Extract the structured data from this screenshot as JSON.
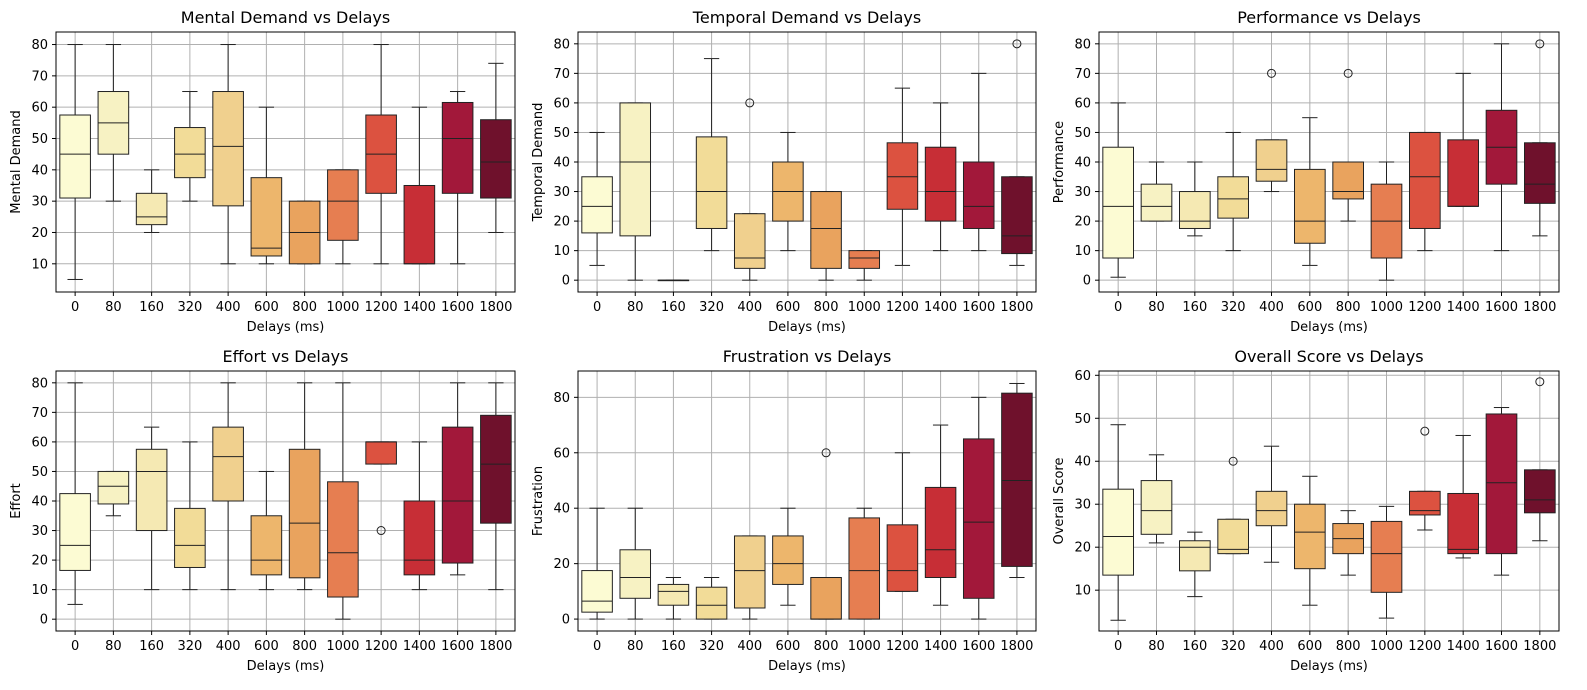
{
  "figure": {
    "colors": [
      "#fcfbd3",
      "#f7f2c3",
      "#f5e9b3",
      "#f2dc98",
      "#f0d08e",
      "#edb66c",
      "#e9a35e",
      "#e67e51",
      "#dc5240",
      "#c72e36",
      "#a2183a",
      "#6f112c"
    ],
    "xlabel": "Delays (ms)",
    "categories": [
      "0",
      "80",
      "160",
      "320",
      "400",
      "600",
      "800",
      "1000",
      "1200",
      "1400",
      "1600",
      "1800"
    ]
  },
  "chart_data": [
    {
      "type": "box",
      "title": "Mental Demand vs Delays",
      "xlabel": "Delays (ms)",
      "ylabel": "Mental Demand",
      "ylim": [
        1,
        84
      ],
      "yticks": [
        10,
        20,
        30,
        40,
        50,
        60,
        70,
        80
      ],
      "grid": true,
      "categories": [
        "0",
        "80",
        "160",
        "320",
        "400",
        "600",
        "800",
        "1000",
        "1200",
        "1400",
        "1600",
        "1800"
      ],
      "boxes": [
        {
          "whislo": 5,
          "q1": 31,
          "med": 45,
          "q3": 57.5,
          "whishi": 80,
          "fliers": []
        },
        {
          "whislo": 30,
          "q1": 45,
          "med": 55,
          "q3": 65,
          "whishi": 80,
          "fliers": []
        },
        {
          "whislo": 20,
          "q1": 22.5,
          "med": 25,
          "q3": 32.5,
          "whishi": 40,
          "fliers": []
        },
        {
          "whislo": 30,
          "q1": 37.5,
          "med": 45,
          "q3": 53.5,
          "whishi": 65,
          "fliers": []
        },
        {
          "whislo": 10,
          "q1": 28.5,
          "med": 47.5,
          "q3": 65,
          "whishi": 80,
          "fliers": []
        },
        {
          "whislo": 10,
          "q1": 12.5,
          "med": 15,
          "q3": 37.5,
          "whishi": 60,
          "fliers": []
        },
        {
          "whislo": 10,
          "q1": 10,
          "med": 20,
          "q3": 30,
          "whishi": 30,
          "fliers": []
        },
        {
          "whislo": 10,
          "q1": 17.5,
          "med": 30,
          "q3": 40,
          "whishi": 40,
          "fliers": []
        },
        {
          "whislo": 10,
          "q1": 32.5,
          "med": 45,
          "q3": 57.5,
          "whishi": 80,
          "fliers": []
        },
        {
          "whislo": 10,
          "q1": 10,
          "med": 10,
          "q3": 35,
          "whishi": 60,
          "fliers": []
        },
        {
          "whislo": 10,
          "q1": 32.5,
          "med": 50,
          "q3": 61.5,
          "whishi": 65,
          "fliers": []
        },
        {
          "whislo": 20,
          "q1": 31,
          "med": 42.5,
          "q3": 56,
          "whishi": 74,
          "fliers": []
        }
      ]
    },
    {
      "type": "box",
      "title": "Temporal Demand vs Delays",
      "xlabel": "Delays (ms)",
      "ylabel": "Temporal Demand",
      "ylim": [
        -4,
        84
      ],
      "yticks": [
        0,
        10,
        20,
        30,
        40,
        50,
        60,
        70,
        80
      ],
      "grid": true,
      "categories": [
        "0",
        "80",
        "160",
        "320",
        "400",
        "600",
        "800",
        "1000",
        "1200",
        "1400",
        "1600",
        "1800"
      ],
      "boxes": [
        {
          "whislo": 5,
          "q1": 16,
          "med": 25,
          "q3": 35,
          "whishi": 50,
          "fliers": []
        },
        {
          "whislo": 0,
          "q1": 15,
          "med": 40,
          "q3": 60,
          "whishi": 60,
          "fliers": []
        },
        {
          "whislo": 0,
          "q1": 0,
          "med": 0,
          "q3": 0,
          "whishi": 0,
          "fliers": []
        },
        {
          "whislo": 10,
          "q1": 17.5,
          "med": 30,
          "q3": 48.5,
          "whishi": 75,
          "fliers": []
        },
        {
          "whislo": 0,
          "q1": 4,
          "med": 7.5,
          "q3": 22.5,
          "whishi": 22.5,
          "fliers": [
            60
          ]
        },
        {
          "whislo": 10,
          "q1": 20,
          "med": 30,
          "q3": 40,
          "whishi": 50,
          "fliers": []
        },
        {
          "whislo": 0,
          "q1": 4,
          "med": 17.5,
          "q3": 30,
          "whishi": 30,
          "fliers": []
        },
        {
          "whislo": 0,
          "q1": 4,
          "med": 7.5,
          "q3": 10,
          "whishi": 10,
          "fliers": []
        },
        {
          "whislo": 5,
          "q1": 24,
          "med": 35,
          "q3": 46.5,
          "whishi": 65,
          "fliers": []
        },
        {
          "whislo": 10,
          "q1": 20,
          "med": 30,
          "q3": 45,
          "whishi": 60,
          "fliers": []
        },
        {
          "whislo": 10,
          "q1": 17.5,
          "med": 25,
          "q3": 40,
          "whishi": 70,
          "fliers": []
        },
        {
          "whislo": 5,
          "q1": 9,
          "med": 15,
          "q3": 35,
          "whishi": 35,
          "fliers": [
            80
          ]
        }
      ]
    },
    {
      "type": "box",
      "title": "Performance vs Delays",
      "xlabel": "Delays (ms)",
      "ylabel": "Performance",
      "ylim": [
        -4,
        84
      ],
      "yticks": [
        0,
        10,
        20,
        30,
        40,
        50,
        60,
        70,
        80
      ],
      "grid": true,
      "categories": [
        "0",
        "80",
        "160",
        "320",
        "400",
        "600",
        "800",
        "1000",
        "1200",
        "1400",
        "1600",
        "1800"
      ],
      "boxes": [
        {
          "whislo": 1,
          "q1": 7.5,
          "med": 25,
          "q3": 45,
          "whishi": 60,
          "fliers": []
        },
        {
          "whislo": 20,
          "q1": 20,
          "med": 25,
          "q3": 32.5,
          "whishi": 40,
          "fliers": []
        },
        {
          "whislo": 15,
          "q1": 17.5,
          "med": 20,
          "q3": 30,
          "whishi": 40,
          "fliers": []
        },
        {
          "whislo": 10,
          "q1": 21,
          "med": 27.5,
          "q3": 35,
          "whishi": 50,
          "fliers": []
        },
        {
          "whislo": 30,
          "q1": 33.5,
          "med": 37.5,
          "q3": 47.5,
          "whishi": 47.5,
          "fliers": [
            70
          ]
        },
        {
          "whislo": 5,
          "q1": 12.5,
          "med": 20,
          "q3": 37.5,
          "whishi": 55,
          "fliers": []
        },
        {
          "whislo": 20,
          "q1": 27.5,
          "med": 30,
          "q3": 40,
          "whishi": 40,
          "fliers": [
            70
          ]
        },
        {
          "whislo": 0,
          "q1": 7.5,
          "med": 20,
          "q3": 32.5,
          "whishi": 40,
          "fliers": []
        },
        {
          "whislo": 10,
          "q1": 17.5,
          "med": 35,
          "q3": 50,
          "whishi": 50,
          "fliers": []
        },
        {
          "whislo": 25,
          "q1": 25,
          "med": 25,
          "q3": 47.5,
          "whishi": 70,
          "fliers": []
        },
        {
          "whislo": 10,
          "q1": 32.5,
          "med": 45,
          "q3": 57.5,
          "whishi": 80,
          "fliers": []
        },
        {
          "whislo": 15,
          "q1": 26,
          "med": 32.5,
          "q3": 46.5,
          "whishi": 46.5,
          "fliers": [
            80
          ]
        }
      ]
    },
    {
      "type": "box",
      "title": "Effort vs Delays",
      "xlabel": "Delays (ms)",
      "ylabel": "Effort",
      "ylim": [
        -4,
        84
      ],
      "yticks": [
        0,
        10,
        20,
        30,
        40,
        50,
        60,
        70,
        80
      ],
      "grid": true,
      "categories": [
        "0",
        "80",
        "160",
        "320",
        "400",
        "600",
        "800",
        "1000",
        "1200",
        "1400",
        "1600",
        "1800"
      ],
      "boxes": [
        {
          "whislo": 5,
          "q1": 16.5,
          "med": 25,
          "q3": 42.5,
          "whishi": 80,
          "fliers": []
        },
        {
          "whislo": 35,
          "q1": 39,
          "med": 45,
          "q3": 50,
          "whishi": 50,
          "fliers": []
        },
        {
          "whislo": 10,
          "q1": 30,
          "med": 50,
          "q3": 57.5,
          "whishi": 65,
          "fliers": []
        },
        {
          "whislo": 10,
          "q1": 17.5,
          "med": 25,
          "q3": 37.5,
          "whishi": 60,
          "fliers": []
        },
        {
          "whislo": 10,
          "q1": 40,
          "med": 55,
          "q3": 65,
          "whishi": 80,
          "fliers": []
        },
        {
          "whislo": 10,
          "q1": 15,
          "med": 20,
          "q3": 35,
          "whishi": 50,
          "fliers": []
        },
        {
          "whislo": 10,
          "q1": 14,
          "med": 32.5,
          "q3": 57.5,
          "whishi": 80,
          "fliers": []
        },
        {
          "whislo": 0,
          "q1": 7.5,
          "med": 22.5,
          "q3": 46.5,
          "whishi": 80,
          "fliers": []
        },
        {
          "whislo": 52.5,
          "q1": 52.5,
          "med": 60,
          "q3": 60,
          "whishi": 60,
          "fliers": [
            30
          ]
        },
        {
          "whislo": 10,
          "q1": 15,
          "med": 20,
          "q3": 40,
          "whishi": 60,
          "fliers": []
        },
        {
          "whislo": 15,
          "q1": 19,
          "med": 40,
          "q3": 65,
          "whishi": 80,
          "fliers": []
        },
        {
          "whislo": 10,
          "q1": 32.5,
          "med": 52.5,
          "q3": 69,
          "whishi": 80,
          "fliers": []
        }
      ]
    },
    {
      "type": "box",
      "title": "Frustration vs Delays",
      "xlabel": "Delays (ms)",
      "ylabel": "Frustration",
      "ylim": [
        -4.3,
        89.5
      ],
      "yticks": [
        0,
        20,
        40,
        60,
        80
      ],
      "grid": true,
      "categories": [
        "0",
        "80",
        "160",
        "320",
        "400",
        "600",
        "800",
        "1000",
        "1200",
        "1400",
        "1600",
        "1800"
      ],
      "boxes": [
        {
          "whislo": 0,
          "q1": 2.5,
          "med": 6.5,
          "q3": 17.5,
          "whishi": 40,
          "fliers": []
        },
        {
          "whislo": 0,
          "q1": 7.5,
          "med": 15,
          "q3": 25,
          "whishi": 40,
          "fliers": []
        },
        {
          "whislo": 0,
          "q1": 5,
          "med": 10,
          "q3": 12.5,
          "whishi": 15,
          "fliers": []
        },
        {
          "whislo": 0,
          "q1": 0,
          "med": 5,
          "q3": 11.5,
          "whishi": 15,
          "fliers": []
        },
        {
          "whislo": 0,
          "q1": 4,
          "med": 17.5,
          "q3": 30,
          "whishi": 30,
          "fliers": []
        },
        {
          "whislo": 5,
          "q1": 12.5,
          "med": 20,
          "q3": 30,
          "whishi": 40,
          "fliers": []
        },
        {
          "whislo": 0,
          "q1": 0,
          "med": 0,
          "q3": 15,
          "whishi": 15,
          "fliers": [
            60
          ]
        },
        {
          "whislo": 0,
          "q1": 0,
          "med": 17.5,
          "q3": 36.5,
          "whishi": 40,
          "fliers": []
        },
        {
          "whislo": 10,
          "q1": 10,
          "med": 17.5,
          "q3": 34,
          "whishi": 60,
          "fliers": []
        },
        {
          "whislo": 5,
          "q1": 15,
          "med": 25,
          "q3": 47.5,
          "whishi": 70,
          "fliers": []
        },
        {
          "whislo": 0,
          "q1": 7.5,
          "med": 35,
          "q3": 65,
          "whishi": 80,
          "fliers": []
        },
        {
          "whislo": 15,
          "q1": 19,
          "med": 50,
          "q3": 81.5,
          "whishi": 85,
          "fliers": []
        }
      ]
    },
    {
      "type": "box",
      "title": "Overall Score vs Delays",
      "xlabel": "Delays (ms)",
      "ylabel": "Overall Score",
      "ylim": [
        0.5,
        61
      ],
      "yticks": [
        10,
        20,
        30,
        40,
        50,
        60
      ],
      "grid": true,
      "categories": [
        "0",
        "80",
        "160",
        "320",
        "400",
        "600",
        "800",
        "1000",
        "1200",
        "1400",
        "1600",
        "1800"
      ],
      "boxes": [
        {
          "whislo": 3,
          "q1": 13.5,
          "med": 22.5,
          "q3": 33.5,
          "whishi": 48.5,
          "fliers": []
        },
        {
          "whislo": 21,
          "q1": 23,
          "med": 28.5,
          "q3": 35.5,
          "whishi": 41.5,
          "fliers": []
        },
        {
          "whislo": 8.5,
          "q1": 14.5,
          "med": 20,
          "q3": 21.5,
          "whishi": 23.5,
          "fliers": []
        },
        {
          "whislo": 18.5,
          "q1": 18.5,
          "med": 19.5,
          "q3": 26.5,
          "whishi": 26.5,
          "fliers": [
            40
          ]
        },
        {
          "whislo": 16.5,
          "q1": 25,
          "med": 28.5,
          "q3": 33,
          "whishi": 43.5,
          "fliers": []
        },
        {
          "whislo": 6.5,
          "q1": 15,
          "med": 23.5,
          "q3": 30,
          "whishi": 36.5,
          "fliers": []
        },
        {
          "whislo": 13.5,
          "q1": 18.5,
          "med": 22,
          "q3": 25.5,
          "whishi": 28.5,
          "fliers": []
        },
        {
          "whislo": 3.5,
          "q1": 9.5,
          "med": 18.5,
          "q3": 26,
          "whishi": 29.5,
          "fliers": []
        },
        {
          "whislo": 24,
          "q1": 27.5,
          "med": 28.5,
          "q3": 33,
          "whishi": 33,
          "fliers": [
            47
          ]
        },
        {
          "whislo": 17.5,
          "q1": 18.5,
          "med": 19.5,
          "q3": 32.5,
          "whishi": 46,
          "fliers": []
        },
        {
          "whislo": 13.5,
          "q1": 18.5,
          "med": 35,
          "q3": 51,
          "whishi": 52.5,
          "fliers": []
        },
        {
          "whislo": 21.5,
          "q1": 28,
          "med": 31,
          "q3": 38,
          "whishi": 38,
          "fliers": [
            58.5
          ]
        }
      ]
    }
  ]
}
